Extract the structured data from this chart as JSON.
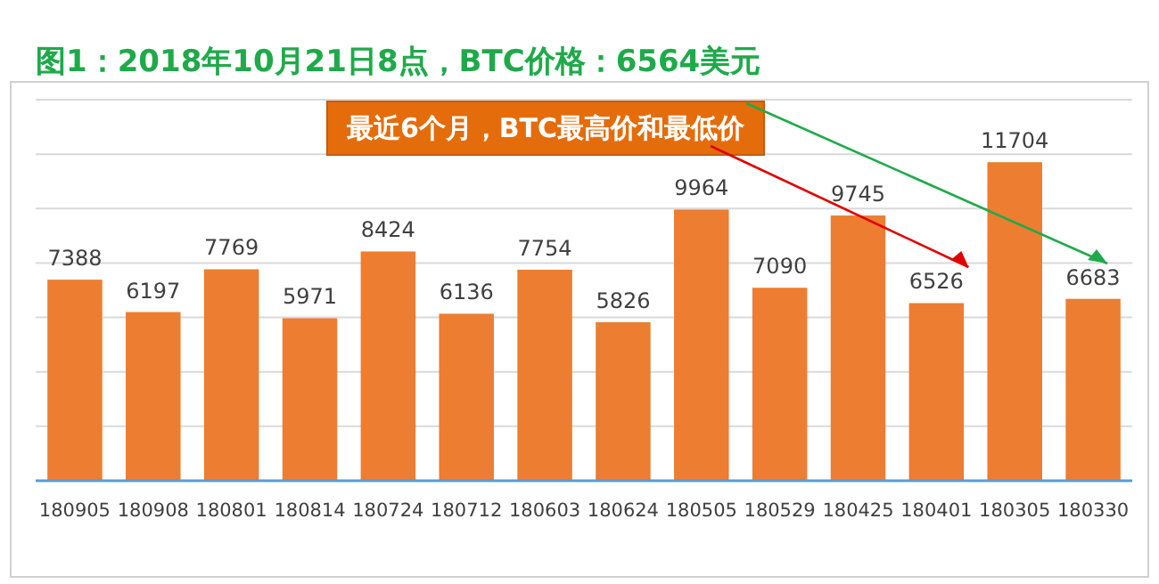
{
  "chart_data": {
    "type": "bar",
    "title": "图1：2018年10月21日8点，BTC价格：6564美元",
    "categories": [
      "180905",
      "180908",
      "180801",
      "180814",
      "180724",
      "180712",
      "180603",
      "180624",
      "180505",
      "180529",
      "180425",
      "180401",
      "180305",
      "180330"
    ],
    "values": [
      7388,
      6197,
      7769,
      5971,
      8424,
      6136,
      7754,
      5826,
      9964,
      7090,
      9745,
      6526,
      11704,
      6683
    ],
    "color": "#ed7d31",
    "data_labels": true,
    "grid": "y",
    "ylim": [
      0,
      14000
    ],
    "yticks": [
      {
        "value": 0,
        "label": null
      },
      {
        "value": 2000,
        "label": null
      },
      {
        "value": 4000,
        "label": null
      },
      {
        "value": 6000,
        "label": null
      },
      {
        "value": 8000,
        "label": null
      },
      {
        "value": 10000,
        "label": null
      },
      {
        "value": 12000,
        "label": null
      },
      {
        "value": 14000,
        "label": null
      }
    ],
    "annotations": [
      "最近6个月，BTC最高价和最低价"
    ]
  }
}
